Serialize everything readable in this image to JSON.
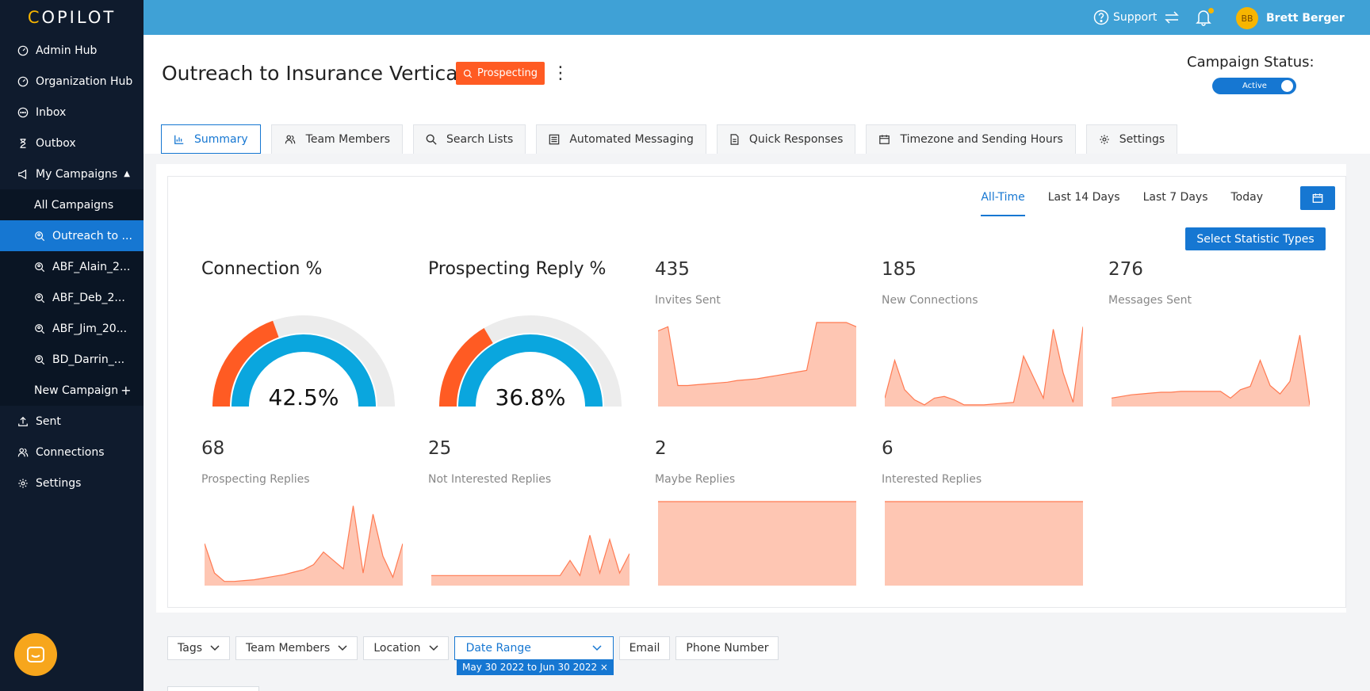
{
  "app": {
    "logo_text": "OPILOT",
    "logo_letter": "C"
  },
  "sidebar": {
    "items": [
      {
        "label": "Admin Hub",
        "icon": "gauge-icon"
      },
      {
        "label": "Organization Hub",
        "icon": "gauge-icon"
      },
      {
        "label": "Inbox",
        "icon": "chat-icon"
      },
      {
        "label": "Outbox",
        "icon": "hourglass-icon"
      },
      {
        "label": "My Campaigns",
        "icon": "megaphone-icon"
      }
    ],
    "campaigns": [
      {
        "label": "All Campaigns"
      },
      {
        "label": "Outreach to ...",
        "active": true
      },
      {
        "label": "ABF_Alain_2..."
      },
      {
        "label": "ABF_Deb_2..."
      },
      {
        "label": "ABF_Jim_20..."
      },
      {
        "label": "BD_Darrin_..."
      },
      {
        "label": "New Campaign"
      }
    ],
    "bottom_items": [
      {
        "label": "Sent",
        "icon": "upload-icon"
      },
      {
        "label": "Connections",
        "icon": "people-icon"
      },
      {
        "label": "Settings",
        "icon": "gear-icon"
      }
    ]
  },
  "topbar": {
    "support": "Support",
    "user_initials": "BB",
    "user_name": "Brett Berger"
  },
  "header": {
    "title": "Outreach to Insurance Vertical",
    "badge": "Prospecting",
    "campaign_status_label": "Campaign Status:",
    "toggle_label": "Active"
  },
  "tabs": [
    {
      "label": "Summary",
      "icon": "bar-chart-icon",
      "active": true
    },
    {
      "label": "Team Members",
      "icon": "people-icon"
    },
    {
      "label": "Search Lists",
      "icon": "search-icon"
    },
    {
      "label": "Automated Messaging",
      "icon": "list-icon"
    },
    {
      "label": "Quick Responses",
      "icon": "document-icon"
    },
    {
      "label": "Timezone and Sending Hours",
      "icon": "calendar-icon"
    },
    {
      "label": "Settings",
      "icon": "gear-icon"
    }
  ],
  "ranges": [
    "All-Time",
    "Last 14 Days",
    "Last 7 Days",
    "Today"
  ],
  "select_stats_button": "Select Statistic Types",
  "gauges": [
    {
      "title": "Connection %",
      "value_text": "42.5%",
      "value": 42.5,
      "outer_fraction": 0.39
    },
    {
      "title": "Prospecting Reply %",
      "value_text": "36.8%",
      "value": 36.8,
      "outer_fraction": 0.33
    }
  ],
  "metrics": [
    {
      "value": "435",
      "label": "Invites Sent",
      "spark": [
        0.9,
        0.95,
        0.25,
        0.25,
        0.26,
        0.27,
        0.28,
        0.29,
        0.31,
        0.32,
        0.33,
        0.35,
        0.37,
        0.39,
        0.41,
        0.43,
        1,
        1,
        1,
        1,
        0.95
      ]
    },
    {
      "value": "185",
      "label": "New Connections",
      "spark": [
        0.1,
        0.55,
        0.2,
        0.08,
        0.02,
        0.1,
        0.12,
        0.08,
        0.02,
        0.02,
        0.02,
        0.03,
        0.04,
        0.05,
        0.6,
        0.35,
        0.1,
        0.92,
        0.4,
        0.05,
        0.95
      ]
    },
    {
      "value": "276",
      "label": "Messages Sent",
      "spark": [
        0.1,
        0.12,
        0.14,
        0.15,
        0.16,
        0.17,
        0.17,
        0.18,
        0.18,
        0.18,
        0.18,
        0.18,
        0.1,
        0.2,
        0.24,
        0.55,
        0.25,
        0.15,
        0.3,
        0.85,
        0.02
      ]
    },
    {
      "value": "68",
      "label": "Prospecting Replies",
      "spark": [
        0.5,
        0.15,
        0.05,
        0.05,
        0.06,
        0.07,
        0.09,
        0.11,
        0.13,
        0.16,
        0.19,
        0.25,
        0.4,
        0.3,
        0.2,
        0.95,
        0.15,
        0.85,
        0.35,
        0.1,
        0.5
      ]
    },
    {
      "value": "25",
      "label": "Not Interested Replies",
      "spark": [
        0.12,
        0.12,
        0.12,
        0.12,
        0.12,
        0.12,
        0.12,
        0.12,
        0.12,
        0.12,
        0.12,
        0.12,
        0.12,
        0.12,
        0.3,
        0.12,
        0.6,
        0.15,
        0.55,
        0.15,
        0.38
      ]
    },
    {
      "value": "2",
      "label": "Maybe Replies",
      "spark": [
        1,
        1,
        1,
        1,
        1,
        1,
        1,
        1,
        1,
        1,
        1,
        1,
        1,
        1,
        1,
        1,
        1,
        1,
        1,
        1,
        1
      ]
    },
    {
      "value": "6",
      "label": "Interested Replies",
      "spark": [
        1,
        1,
        1,
        1,
        1,
        1,
        1,
        1,
        1,
        1,
        1,
        1,
        1,
        1,
        1,
        1,
        1,
        1,
        1,
        1,
        1
      ]
    }
  ],
  "filters": {
    "tags": "Tags",
    "team_members": "Team Members",
    "location": "Location",
    "date_range": "Date Range",
    "email": "Email",
    "phone": "Phone Number",
    "date_chip": "May 30 2022 to Jun 30 2022 ×"
  },
  "colors": {
    "accent": "#1677d2",
    "orange": "#ff5b23",
    "gauge_blue": "#0aa6de",
    "spark_fill": "#fec6b3",
    "spark_line": "#ff7a52"
  }
}
